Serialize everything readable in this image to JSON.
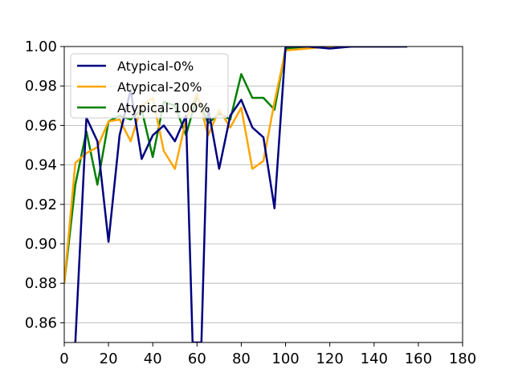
{
  "chart_data": {
    "type": "line",
    "title": "",
    "xlabel": "",
    "ylabel": "",
    "xlim": [
      0,
      180
    ],
    "ylim": [
      0.85,
      1.0
    ],
    "xticks": [
      0,
      20,
      40,
      60,
      80,
      100,
      120,
      140,
      160,
      180
    ],
    "xtick_labels": [
      "0",
      "20",
      "40",
      "60",
      "80",
      "100",
      "120",
      "140",
      "160",
      "180"
    ],
    "yticks": [
      0.86,
      0.88,
      0.9,
      0.92,
      0.94,
      0.96,
      0.98,
      1.0
    ],
    "ytick_labels": [
      "0.86",
      "0.88",
      "0.90",
      "0.92",
      "0.94",
      "0.96",
      "0.98",
      "1.00"
    ],
    "grid": "horizontal",
    "legend_position": "top-left",
    "series": [
      {
        "name": "Atypical-0%",
        "color": "#00007f",
        "x": [
          5,
          10,
          15,
          20,
          25,
          30,
          35,
          40,
          45,
          50,
          55,
          58,
          62,
          65,
          70,
          75,
          80,
          85,
          90,
          95,
          100,
          110,
          120,
          130,
          140,
          155
        ],
        "y": [
          0.85,
          0.964,
          0.952,
          0.901,
          0.955,
          0.978,
          0.943,
          0.955,
          0.96,
          0.952,
          0.965,
          0.85,
          0.85,
          0.969,
          0.938,
          0.965,
          0.973,
          0.959,
          0.954,
          0.918,
          1.0,
          1.0,
          0.999,
          1.0,
          1.0,
          1.0
        ]
      },
      {
        "name": "Atypical-20%",
        "color": "#ffa500",
        "x": [
          0,
          5,
          10,
          15,
          20,
          25,
          30,
          35,
          40,
          45,
          50,
          55,
          60,
          65,
          70,
          75,
          80,
          85,
          90,
          95,
          100,
          110,
          120,
          130,
          140,
          155
        ],
        "y": [
          0.88,
          0.941,
          0.946,
          0.949,
          0.962,
          0.963,
          0.952,
          0.97,
          0.974,
          0.947,
          0.938,
          0.963,
          0.976,
          0.955,
          0.968,
          0.959,
          0.969,
          0.938,
          0.942,
          0.972,
          0.998,
          0.999,
          1.0,
          1.0,
          1.0,
          1.0
        ]
      },
      {
        "name": "Atypical-100%",
        "color": "#007f00",
        "x": [
          0,
          5,
          10,
          15,
          20,
          25,
          30,
          35,
          40,
          45,
          50,
          55,
          60,
          65,
          70,
          75,
          80,
          85,
          90,
          95,
          100,
          110,
          120,
          130,
          140,
          155
        ],
        "y": [
          0.88,
          0.93,
          0.957,
          0.93,
          0.962,
          0.965,
          0.963,
          0.968,
          0.944,
          0.972,
          0.97,
          0.955,
          0.975,
          0.961,
          0.966,
          0.963,
          0.986,
          0.974,
          0.974,
          0.968,
          0.999,
          1.0,
          1.0,
          1.0,
          1.0,
          1.0
        ]
      }
    ]
  }
}
